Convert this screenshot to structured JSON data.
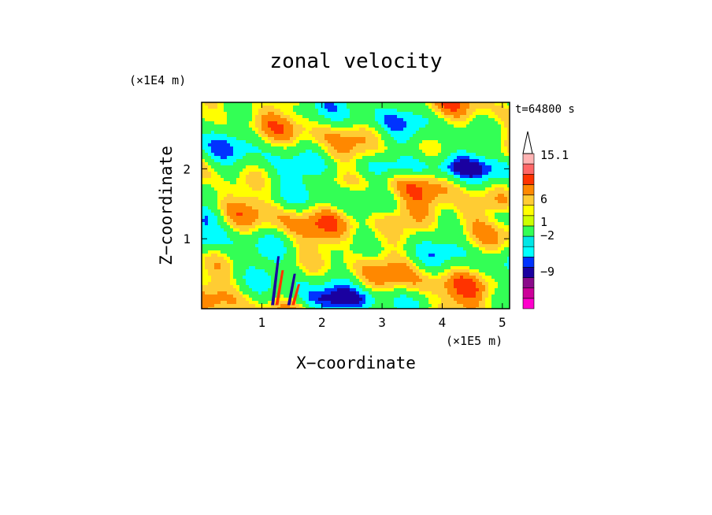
{
  "chart_data": {
    "type": "heatmap",
    "title": "zonal velocity",
    "time_label": "t=64800 s",
    "xlabel": "X−coordinate",
    "ylabel": "Z−coordinate",
    "x_scale_label": "(×1E5 m)",
    "y_scale_label": "(×1E4 m)",
    "xlim": [
      0,
      5.12
    ],
    "ylim": [
      0,
      2.95
    ],
    "x_ticks": [
      1,
      2,
      3,
      4,
      5
    ],
    "y_ticks": [
      1,
      2
    ],
    "colorbar": {
      "tick_labels": [
        "15.1",
        "6",
        "1",
        "−2",
        "−9"
      ],
      "levels": [
        -15,
        -12,
        -9,
        -6,
        -4,
        -2,
        -1,
        0,
        1,
        2,
        3,
        4,
        6,
        9,
        12,
        15.1
      ],
      "colors": [
        "#ff00cc",
        "#cc0099",
        "#8a0a8a",
        "#1a00a0",
        "#0033ff",
        "#00ffff",
        "#00e6e6",
        "#33ff55",
        "#ccff00",
        "#ffff00",
        "#ffcc33",
        "#ff8800",
        "#ff3300",
        "#ff6666",
        "#ffb3b3"
      ]
    },
    "grid": false,
    "legend": "colorbar-right"
  }
}
